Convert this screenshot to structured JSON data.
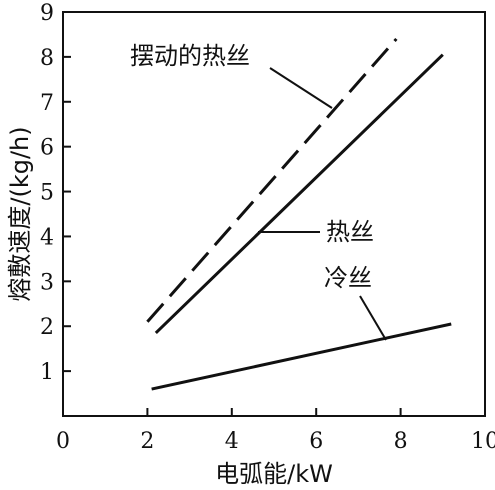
{
  "chart_data": {
    "type": "line",
    "xlabel": "电弧能/kW",
    "ylabel": "熔敷速度/(kg/h)",
    "xlim": [
      0,
      10
    ],
    "ylim": [
      0,
      9
    ],
    "xticks": [
      "0",
      "2",
      "4",
      "6",
      "8",
      "10"
    ],
    "yticks": [
      "1",
      "2",
      "3",
      "4",
      "5",
      "6",
      "7",
      "8",
      "9"
    ],
    "grid": false,
    "legend": "none",
    "series": [
      {
        "name": "摆动的热丝",
        "style": "dashed",
        "x": [
          2.0,
          7.9
        ],
        "y": [
          2.1,
          8.4
        ]
      },
      {
        "name": "热丝",
        "style": "solid",
        "x": [
          2.2,
          9.0
        ],
        "y": [
          1.85,
          8.05
        ]
      },
      {
        "name": "冷丝",
        "style": "solid",
        "x": [
          2.1,
          9.2
        ],
        "y": [
          0.6,
          2.05
        ]
      }
    ],
    "annotations": [
      {
        "text": "摆动的热丝",
        "series": 0
      },
      {
        "text": "热丝",
        "series": 1
      },
      {
        "text": "冷丝",
        "series": 2
      }
    ]
  }
}
